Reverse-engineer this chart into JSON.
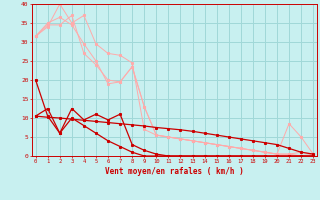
{
  "background_color": "#c8f0f0",
  "grid_color": "#a0d8d8",
  "line_color_dark": "#cc0000",
  "line_color_light": "#ffaaaa",
  "xlabel": "Vent moyen/en rafales ( km/h )",
  "xlabel_color": "#cc0000",
  "tick_color": "#cc0000",
  "xlim": [
    0,
    23
  ],
  "ylim": [
    0,
    40
  ],
  "yticks": [
    0,
    5,
    10,
    15,
    20,
    25,
    30,
    35,
    40
  ],
  "xticks": [
    0,
    1,
    2,
    3,
    4,
    5,
    6,
    7,
    8,
    9,
    10,
    11,
    12,
    13,
    14,
    15,
    16,
    17,
    18,
    19,
    20,
    21,
    22,
    23
  ],
  "series_dark": [
    [
      10.5,
      12.5,
      6.0,
      12.5,
      9.5,
      11.0,
      9.5,
      11.0,
      3.0,
      1.5,
      0.5,
      0.0,
      0.0,
      0.0,
      0.0,
      0.0,
      0.0,
      0.0,
      0.0,
      0.0,
      0.0,
      0.0,
      0.0,
      0.0
    ],
    [
      10.5,
      10.2,
      10.0,
      9.7,
      9.4,
      9.1,
      8.8,
      8.5,
      8.2,
      7.9,
      7.5,
      7.2,
      6.9,
      6.5,
      6.0,
      5.5,
      5.0,
      4.5,
      4.0,
      3.5,
      3.0,
      2.0,
      1.0,
      0.5
    ],
    [
      20.0,
      10.5,
      6.0,
      10.0,
      8.0,
      6.0,
      4.0,
      2.5,
      1.0,
      0.0,
      0.0,
      0.0,
      0.0,
      0.0,
      0.0,
      0.0,
      0.0,
      0.0,
      0.0,
      0.0,
      0.0,
      0.0,
      0.0,
      0.0
    ]
  ],
  "series_light": [
    [
      31.5,
      34.5,
      34.5,
      37.0,
      27.0,
      24.0,
      20.0,
      19.5,
      23.5,
      13.0,
      5.5,
      5.0,
      4.5,
      4.0,
      3.5,
      3.0,
      2.5,
      2.0,
      1.5,
      1.0,
      0.5,
      0.5,
      1.0,
      0.5
    ],
    [
      31.5,
      34.0,
      40.0,
      35.0,
      37.0,
      29.5,
      27.0,
      26.5,
      24.5,
      7.0,
      5.5,
      5.0,
      4.5,
      4.0,
      3.5,
      3.0,
      2.5,
      2.0,
      1.5,
      1.0,
      0.5,
      0.5,
      0.0,
      0.5
    ],
    [
      31.5,
      35.0,
      36.5,
      34.5,
      29.5,
      25.0,
      19.0,
      19.5,
      23.5,
      13.0,
      5.5,
      5.0,
      4.5,
      4.0,
      3.5,
      3.0,
      2.5,
      2.0,
      1.5,
      1.0,
      0.5,
      8.5,
      5.0,
      0.5
    ]
  ]
}
